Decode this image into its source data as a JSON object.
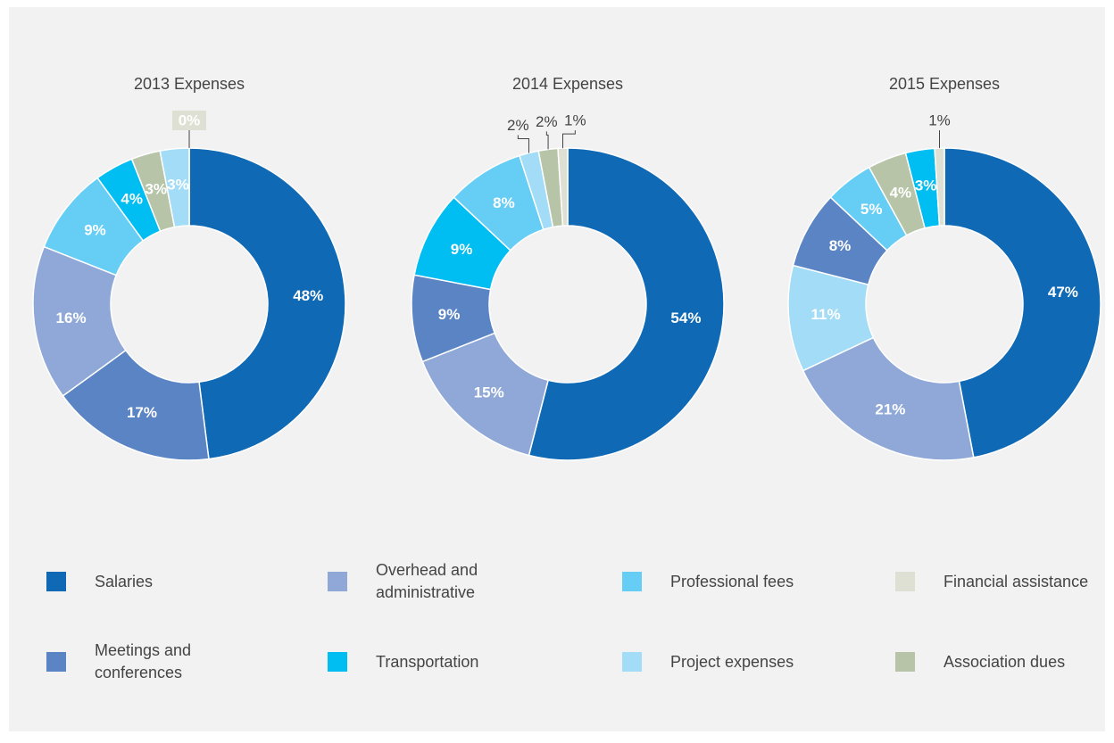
{
  "chart_data": [
    {
      "type": "pie",
      "title": "2013 Expenses",
      "categories": [
        "Salaries",
        "Meetings and conferences",
        "Overhead and administrative",
        "Professional fees",
        "Transportation",
        "Association dues",
        "Project expenses",
        "Financial assistance"
      ],
      "values": [
        48,
        17,
        16,
        9,
        4,
        3,
        3,
        0
      ],
      "value_labels": [
        "48%",
        "17%",
        "16%",
        "9%",
        "4%",
        "3%",
        "3%",
        "0%"
      ]
    },
    {
      "type": "pie",
      "title": "2014 Expenses",
      "categories": [
        "Salaries",
        "Overhead and administrative",
        "Meetings and conferences",
        "Transportation",
        "Professional fees",
        "Project expenses",
        "Association dues",
        "Financial assistance"
      ],
      "values": [
        54,
        15,
        9,
        9,
        8,
        2,
        2,
        1
      ],
      "value_labels": [
        "54%",
        "15%",
        "9%",
        "9%",
        "8%",
        "2%",
        "2%",
        "1%"
      ]
    },
    {
      "type": "pie",
      "title": "2015 Expenses",
      "categories": [
        "Salaries",
        "Overhead and administrative",
        "Project expenses",
        "Meetings and conferences",
        "Professional fees",
        "Association dues",
        "Transportation",
        "Financial assistance"
      ],
      "values": [
        47,
        21,
        11,
        8,
        5,
        4,
        3,
        1
      ],
      "value_labels": [
        "47%",
        "21%",
        "11%",
        "8%",
        "5%",
        "4%",
        "3%",
        "1%"
      ]
    }
  ],
  "legend": {
    "items": [
      {
        "name": "Salaries",
        "color": "#0f69b4"
      },
      {
        "name": "Overhead and administrative",
        "color": "#8fa8d8"
      },
      {
        "name": "Professional fees",
        "color": "#66cdf5"
      },
      {
        "name": "Financial assistance",
        "color": "#dde0d2"
      },
      {
        "name": "Meetings and conferences",
        "color": "#5b84c4"
      },
      {
        "name": "Transportation",
        "color": "#00bdf2"
      },
      {
        "name": "Project expenses",
        "color": "#a2dcf7"
      },
      {
        "name": "Association dues",
        "color": "#b7c4a8"
      }
    ]
  }
}
